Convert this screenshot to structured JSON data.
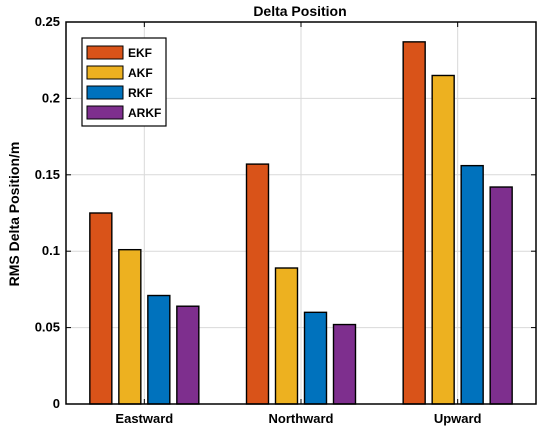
{
  "chart_data": {
    "type": "bar",
    "title": "Delta Position",
    "xlabel": "",
    "ylabel": "RMS Delta Position/m",
    "categories": [
      "Eastward",
      "Northward",
      "Upward"
    ],
    "ylim": [
      0,
      0.25
    ],
    "yticks": [
      "0",
      "0.05",
      "0.1",
      "0.15",
      "0.2",
      "0.25"
    ],
    "yticks_values": [
      0,
      0.05,
      0.1,
      0.15,
      0.2,
      0.25
    ],
    "grid": true,
    "legend_position": "top-left",
    "series": [
      {
        "name": "EKF",
        "color": "#D95319",
        "values": [
          0.125,
          0.157,
          0.237
        ]
      },
      {
        "name": "AKF",
        "color": "#EDB120",
        "values": [
          0.101,
          0.089,
          0.215
        ]
      },
      {
        "name": "RKF",
        "color": "#0072BD",
        "values": [
          0.071,
          0.06,
          0.156
        ]
      },
      {
        "name": "ARKF",
        "color": "#7E2F8E",
        "values": [
          0.064,
          0.052,
          0.142
        ]
      }
    ]
  }
}
